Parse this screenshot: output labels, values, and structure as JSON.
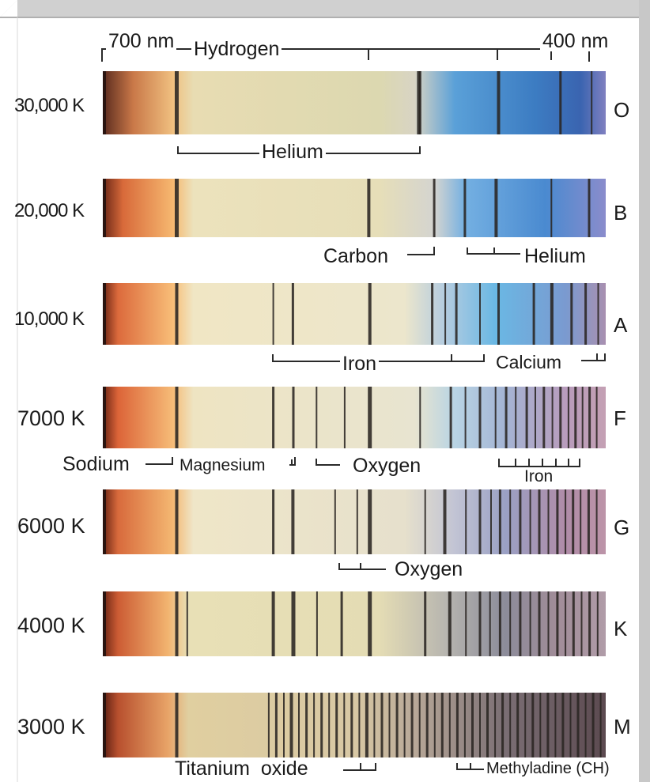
{
  "wavelength_axis": {
    "red_end_label": "700 nm",
    "blue_end_label": "400 nm"
  },
  "colors": {
    "ink": "#1a1a1a",
    "line": "#2a2a2a",
    "paper": "#ffffff",
    "frame": "#c8c8c8",
    "red_end": "#8a3a22",
    "orange": "#f6b06a",
    "cream": "#ece2bc",
    "blue": "#3d7fc0",
    "violet": "#8888c0"
  },
  "spectra": [
    {
      "temperature": "30,000 K",
      "class": "O",
      "gradient": [
        [
          "0",
          "#5a2a1e"
        ],
        [
          "0.06",
          "#c97848"
        ],
        [
          "0.14",
          "#f0c080"
        ],
        [
          "0.18",
          "#e8dcb2"
        ],
        [
          "0.55",
          "#dcd8b0"
        ],
        [
          "0.62",
          "#d8d4c4"
        ],
        [
          "0.70",
          "#5aa0d8"
        ],
        [
          "0.86",
          "#3c7cc2"
        ],
        [
          "0.95",
          "#3a64b0"
        ],
        [
          "1",
          "#8080c0"
        ]
      ],
      "lines": [
        [
          0.147,
          5
        ],
        [
          0.631,
          3
        ],
        [
          0.628,
          4
        ],
        [
          0.787,
          4
        ],
        [
          0.91,
          3
        ],
        [
          0.972,
          2
        ]
      ]
    },
    {
      "temperature": "20,000 K",
      "class": "B",
      "gradient": [
        [
          "0",
          "#6a2616"
        ],
        [
          "0.04",
          "#d86a3a"
        ],
        [
          "0.14",
          "#f6b870"
        ],
        [
          "0.18",
          "#ece2bc"
        ],
        [
          "0.55",
          "#e6deb8"
        ],
        [
          "0.66",
          "#d4d4d0"
        ],
        [
          "0.72",
          "#74b0e2"
        ],
        [
          "0.88",
          "#4a8ad0"
        ],
        [
          "1",
          "#8a8ccc"
        ]
      ],
      "lines": [
        [
          0.147,
          5
        ],
        [
          0.529,
          4
        ],
        [
          0.659,
          3
        ],
        [
          0.72,
          3
        ],
        [
          0.782,
          4
        ],
        [
          0.892,
          2
        ],
        [
          0.967,
          3
        ]
      ]
    },
    {
      "temperature": "10,000 K",
      "class": "A",
      "gradient": [
        [
          "0",
          "#6a2414"
        ],
        [
          "0.03",
          "#dc6a3c"
        ],
        [
          "0.14",
          "#f8be78"
        ],
        [
          "0.18",
          "#f0e6c4"
        ],
        [
          "0.60",
          "#ece6cc"
        ],
        [
          "0.68",
          "#b4cce0"
        ],
        [
          "0.78",
          "#6ab8e4"
        ],
        [
          "0.92",
          "#7a9ad0"
        ],
        [
          "1",
          "#a890b0"
        ]
      ],
      "lines": [
        [
          0.147,
          4
        ],
        [
          0.339,
          2
        ],
        [
          0.378,
          3
        ],
        [
          0.531,
          4
        ],
        [
          0.655,
          3
        ],
        [
          0.681,
          2
        ],
        [
          0.703,
          3
        ],
        [
          0.75,
          2
        ],
        [
          0.787,
          3
        ],
        [
          0.857,
          3
        ],
        [
          0.893,
          4
        ],
        [
          0.932,
          3
        ],
        [
          0.96,
          3
        ],
        [
          0.985,
          2
        ]
      ]
    },
    {
      "temperature": "7000 K",
      "class": "F",
      "gradient": [
        [
          "0",
          "#6a2414"
        ],
        [
          "0.03",
          "#dc6438"
        ],
        [
          "0.14",
          "#f6bc78"
        ],
        [
          "0.18",
          "#eee4c2"
        ],
        [
          "0.62",
          "#e8e4d0"
        ],
        [
          "0.70",
          "#b8d4e4"
        ],
        [
          "0.80",
          "#a4b4d4"
        ],
        [
          "0.92",
          "#b89cbc"
        ],
        [
          "1",
          "#c4a0b4"
        ]
      ],
      "lines": [
        [
          0.147,
          4
        ],
        [
          0.339,
          3
        ],
        [
          0.379,
          3
        ],
        [
          0.425,
          2
        ],
        [
          0.481,
          2
        ],
        [
          0.531,
          5
        ],
        [
          0.631,
          2
        ],
        [
          0.692,
          3
        ],
        [
          0.721,
          2
        ],
        [
          0.75,
          3
        ],
        [
          0.781,
          2
        ],
        [
          0.802,
          3
        ],
        [
          0.821,
          2
        ],
        [
          0.843,
          3
        ],
        [
          0.86,
          2
        ],
        [
          0.877,
          3
        ],
        [
          0.894,
          2
        ],
        [
          0.91,
          3
        ],
        [
          0.926,
          2
        ],
        [
          0.94,
          3
        ],
        [
          0.954,
          2
        ],
        [
          0.968,
          3
        ],
        [
          0.982,
          2
        ]
      ]
    },
    {
      "temperature": "6000 K",
      "class": "G",
      "gradient": [
        [
          "0",
          "#6a2414"
        ],
        [
          "0.03",
          "#d86a3c"
        ],
        [
          "0.14",
          "#f4b872"
        ],
        [
          "0.18",
          "#efe6c8"
        ],
        [
          "0.60",
          "#e6e0cc"
        ],
        [
          "0.70",
          "#c2c4d4"
        ],
        [
          "0.80",
          "#9aa0c4"
        ],
        [
          "0.92",
          "#b08ca8"
        ],
        [
          "1",
          "#bc94a8"
        ]
      ],
      "lines": [
        [
          0.147,
          4
        ],
        [
          0.339,
          3
        ],
        [
          0.378,
          4
        ],
        [
          0.462,
          2
        ],
        [
          0.506,
          2
        ],
        [
          0.531,
          5
        ],
        [
          0.641,
          2
        ],
        [
          0.68,
          4
        ],
        [
          0.722,
          2
        ],
        [
          0.75,
          3
        ],
        [
          0.772,
          2
        ],
        [
          0.79,
          3
        ],
        [
          0.81,
          2
        ],
        [
          0.83,
          3
        ],
        [
          0.85,
          2
        ],
        [
          0.868,
          3
        ],
        [
          0.886,
          2
        ],
        [
          0.904,
          3
        ],
        [
          0.92,
          2
        ],
        [
          0.935,
          3
        ],
        [
          0.95,
          2
        ],
        [
          0.966,
          3
        ],
        [
          0.982,
          2
        ]
      ]
    },
    {
      "temperature": "4000 K",
      "class": "K",
      "gradient": [
        [
          "0",
          "#6a2414"
        ],
        [
          "0.03",
          "#cc5c34"
        ],
        [
          "0.13",
          "#f2b470"
        ],
        [
          "0.17",
          "#e8e0b6"
        ],
        [
          "0.55",
          "#e4dcb4"
        ],
        [
          "0.68",
          "#b8b6b0"
        ],
        [
          "0.80",
          "#8c8c9a"
        ],
        [
          "0.90",
          "#a08c98"
        ],
        [
          "1",
          "#b09ca8"
        ]
      ],
      "lines": [
        [
          0.147,
          4
        ],
        [
          0.168,
          2
        ],
        [
          0.339,
          4
        ],
        [
          0.379,
          5
        ],
        [
          0.426,
          2
        ],
        [
          0.475,
          3
        ],
        [
          0.531,
          5
        ],
        [
          0.641,
          3
        ],
        [
          0.69,
          4
        ],
        [
          0.722,
          2
        ],
        [
          0.75,
          3
        ],
        [
          0.77,
          2
        ],
        [
          0.79,
          3
        ],
        [
          0.81,
          2
        ],
        [
          0.83,
          3
        ],
        [
          0.85,
          2
        ],
        [
          0.868,
          3
        ],
        [
          0.886,
          2
        ],
        [
          0.904,
          3
        ],
        [
          0.92,
          2
        ],
        [
          0.936,
          3
        ],
        [
          0.952,
          2
        ],
        [
          0.968,
          3
        ],
        [
          0.984,
          2
        ]
      ]
    },
    {
      "temperature": "3000 K",
      "class": "M",
      "gradient": [
        [
          "0",
          "#5a1e12"
        ],
        [
          "0.03",
          "#b8502e"
        ],
        [
          "0.13",
          "#e8a468"
        ],
        [
          "0.17",
          "#e0cfa0"
        ],
        [
          "0.50",
          "#d8c8a4"
        ],
        [
          "0.62",
          "#b8a898"
        ],
        [
          "0.80",
          "#7a6e74"
        ],
        [
          "1",
          "#5c4a50"
        ]
      ],
      "lines": [
        [
          0.147,
          4
        ],
        [
          0.33,
          2
        ],
        [
          0.345,
          3
        ],
        [
          0.36,
          2
        ],
        [
          0.375,
          4
        ],
        [
          0.39,
          2
        ],
        [
          0.405,
          3
        ],
        [
          0.42,
          2
        ],
        [
          0.435,
          3
        ],
        [
          0.45,
          2
        ],
        [
          0.465,
          3
        ],
        [
          0.48,
          2
        ],
        [
          0.495,
          3
        ],
        [
          0.51,
          2
        ],
        [
          0.525,
          4
        ],
        [
          0.54,
          2
        ],
        [
          0.555,
          3
        ],
        [
          0.57,
          2
        ],
        [
          0.585,
          3
        ],
        [
          0.6,
          2
        ],
        [
          0.615,
          3
        ],
        [
          0.63,
          2
        ],
        [
          0.645,
          3
        ],
        [
          0.66,
          2
        ],
        [
          0.675,
          3
        ],
        [
          0.69,
          2
        ],
        [
          0.705,
          3
        ],
        [
          0.72,
          2
        ],
        [
          0.735,
          3
        ],
        [
          0.75,
          2
        ],
        [
          0.765,
          3
        ],
        [
          0.78,
          2
        ],
        [
          0.795,
          3
        ],
        [
          0.81,
          2
        ],
        [
          0.825,
          3
        ],
        [
          0.84,
          2
        ],
        [
          0.855,
          3
        ],
        [
          0.87,
          2
        ],
        [
          0.885,
          3
        ],
        [
          0.9,
          2
        ],
        [
          0.915,
          3
        ],
        [
          0.93,
          2
        ],
        [
          0.945,
          3
        ],
        [
          0.96,
          2
        ],
        [
          0.975,
          3
        ],
        [
          0.99,
          2
        ]
      ]
    }
  ],
  "element_labels": {
    "hydrogen": "Hydrogen",
    "helium_o": "Helium",
    "carbon": "Carbon",
    "helium_b": "Helium",
    "iron_a": "Iron",
    "calcium": "Calcium",
    "sodium": "Sodium",
    "magnesium": "Magnesium",
    "oxygen_f": "Oxygen",
    "iron_f": "Iron",
    "oxygen_g": "Oxygen",
    "titanium_oxide": "Titanium  oxide",
    "methyladine": "Methyladine (CH)"
  }
}
